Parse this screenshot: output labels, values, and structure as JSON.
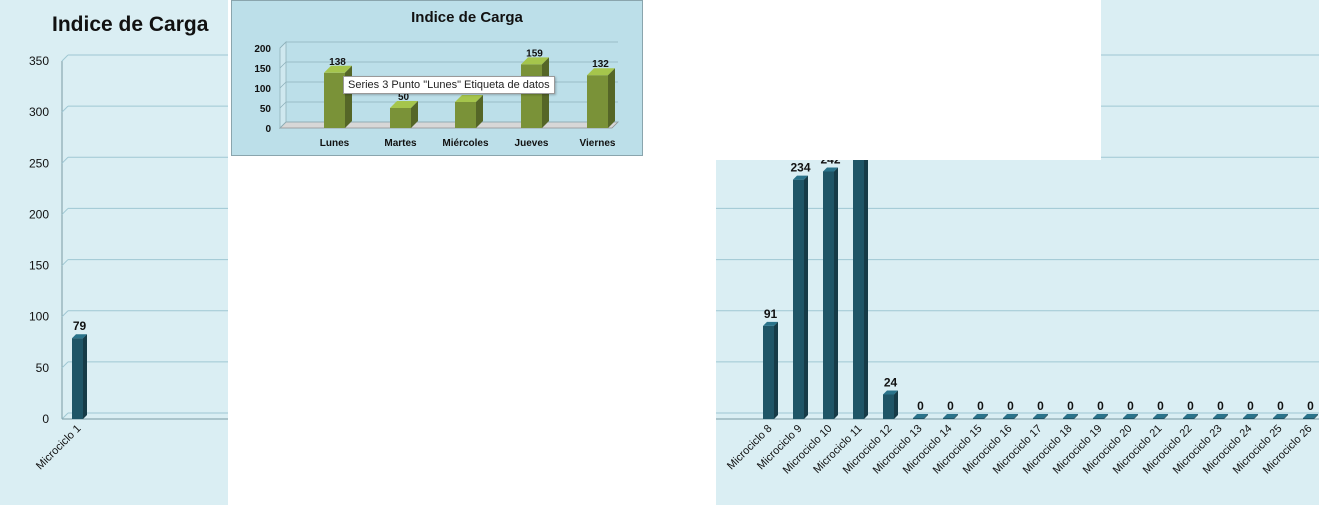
{
  "chart_data": [
    {
      "type": "bar",
      "title": "Indice de Carga",
      "categories": [
        "Microciclo 1",
        "Microciclo 8",
        "Microciclo 9",
        "Microciclo 10",
        "Microciclo 11",
        "Microciclo 12",
        "Microciclo 13",
        "Microciclo 14",
        "Microciclo 15",
        "Microciclo 16",
        "Microciclo 17",
        "Microciclo 18",
        "Microciclo 19",
        "Microciclo 20",
        "Microciclo 21",
        "Microciclo 22",
        "Microciclo 23",
        "Microciclo 24",
        "Microciclo 25",
        "Microciclo 26"
      ],
      "values": [
        79,
        91,
        234,
        242,
        310,
        24,
        0,
        0,
        0,
        0,
        0,
        0,
        0,
        0,
        0,
        0,
        0,
        0,
        0,
        0
      ],
      "value_labels": [
        "79",
        "91",
        "234",
        "242",
        "",
        "24",
        "0",
        "0",
        "0",
        "0",
        "0",
        "0",
        "0",
        "0",
        "0",
        "0",
        "0",
        "0",
        "0",
        "0"
      ],
      "yticks": [
        "0",
        "50",
        "100",
        "150",
        "200",
        "250",
        "300",
        "350"
      ],
      "ylim": [
        0,
        350
      ],
      "grid": true,
      "color": "#1f5566"
    },
    {
      "type": "bar",
      "title": "Indice de Carga",
      "categories": [
        "Lunes",
        "Martes",
        "Miércoles",
        "Jueves",
        "Viernes"
      ],
      "values": [
        138,
        50,
        65,
        159,
        132
      ],
      "value_labels": [
        "138",
        "50",
        "",
        "159",
        "132"
      ],
      "yticks": [
        "0",
        "50",
        "100",
        "150",
        "200"
      ],
      "ylim": [
        0,
        200
      ],
      "grid": true,
      "color": "#7a9238"
    }
  ],
  "tooltip": "Series 3 Punto \"Lunes\" Etiqueta de datos"
}
